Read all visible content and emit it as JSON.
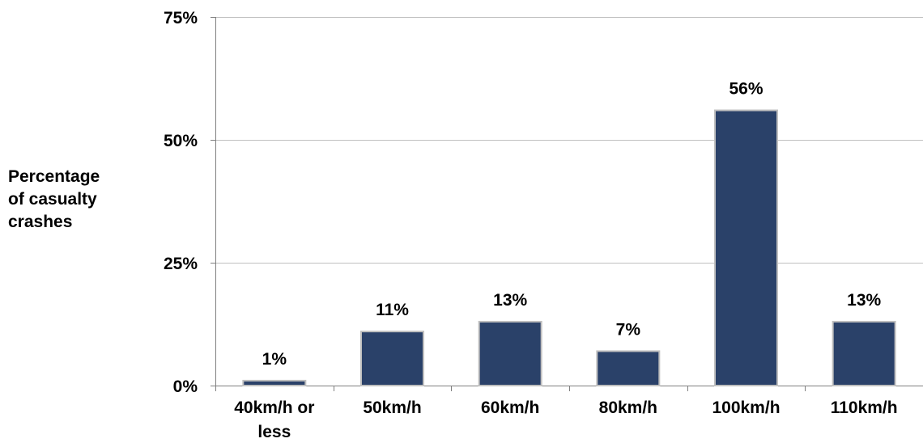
{
  "chart_data": {
    "type": "bar",
    "categories": [
      "40km/h or less",
      "50km/h",
      "60km/h",
      "80km/h",
      "100km/h",
      "110km/h"
    ],
    "category_lines": [
      [
        "40km/h or",
        "less"
      ],
      [
        "50km/h"
      ],
      [
        "60km/h"
      ],
      [
        "80km/h"
      ],
      [
        "100km/h"
      ],
      [
        "110km/h"
      ]
    ],
    "values": [
      1,
      11,
      13,
      7,
      56,
      13
    ],
    "data_labels": [
      "1%",
      "11%",
      "13%",
      "7%",
      "56%",
      "13%"
    ],
    "ylabel_lines": [
      "Percentage",
      "of casualty",
      "crashes"
    ],
    "ylim": [
      0,
      75
    ],
    "yticks": [
      0,
      25,
      50,
      75
    ],
    "ytick_labels": [
      "0%",
      "25%",
      "50%",
      "75%"
    ],
    "grid": true,
    "legend": "none",
    "bar_color": "#2a4169",
    "bar_edge_color": "#bfbfbf",
    "grid_color": "#c0c0c0",
    "axis_color": "#808080"
  }
}
